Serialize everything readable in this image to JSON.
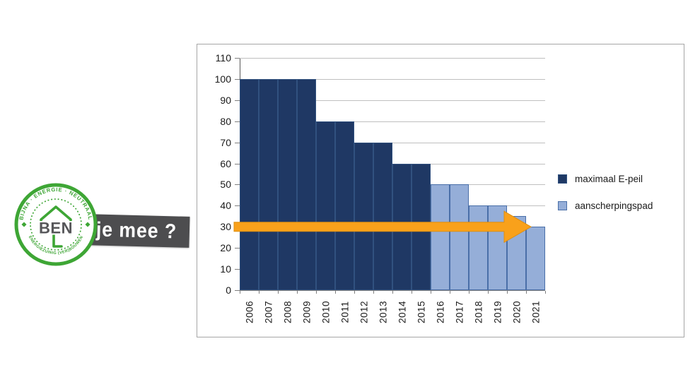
{
  "logo": {
    "badge_top_text": "BIJNA · ENERGIE · NEUTRAAL",
    "badge_center_text": "BEN",
    "badge_bottom_text": "ENERGIEZUINIG (VER)BOUWEN",
    "banner_text": "je mee ?"
  },
  "colors": {
    "logo_green": "#3ea635",
    "logo_text_gray": "#565659",
    "banner_gray": "#4d4d4f",
    "navy": "#1f3864",
    "navy_border": "#31517f",
    "light_blue": "#95aed8",
    "light_blue_border": "#4a6fa8",
    "arrow_orange": "#f9a11b",
    "arrow_orange_edge": "#de8f12",
    "gridline_gray": "#bfbfbf"
  },
  "chart_data": {
    "type": "bar",
    "title": "",
    "xlabel": "",
    "ylabel": "",
    "categories": [
      "2006",
      "2007",
      "2008",
      "2009",
      "2010",
      "2011",
      "2012",
      "2013",
      "2014",
      "2015",
      "2016",
      "2017",
      "2018",
      "2019",
      "2020",
      "2021"
    ],
    "series": [
      {
        "name": "maximaal E-peil",
        "color": "#1f3864",
        "border": "#31517f",
        "values": [
          100,
          100,
          100,
          100,
          80,
          80,
          70,
          70,
          60,
          60,
          null,
          null,
          null,
          null,
          null,
          null
        ]
      },
      {
        "name": "aanscherpingspad",
        "color": "#95aed8",
        "border": "#4a6fa8",
        "values": [
          null,
          null,
          null,
          null,
          null,
          null,
          null,
          null,
          null,
          null,
          50,
          50,
          40,
          40,
          35,
          30
        ]
      }
    ],
    "ylim": [
      0,
      110
    ],
    "ytick_step": 10,
    "grid": true,
    "legend_position": "right",
    "annotation": {
      "type": "arrow",
      "at_value": 30,
      "direction": "right",
      "color": "#f9a11b",
      "spans_from_category": "2006",
      "spans_to_category": "2021"
    }
  }
}
